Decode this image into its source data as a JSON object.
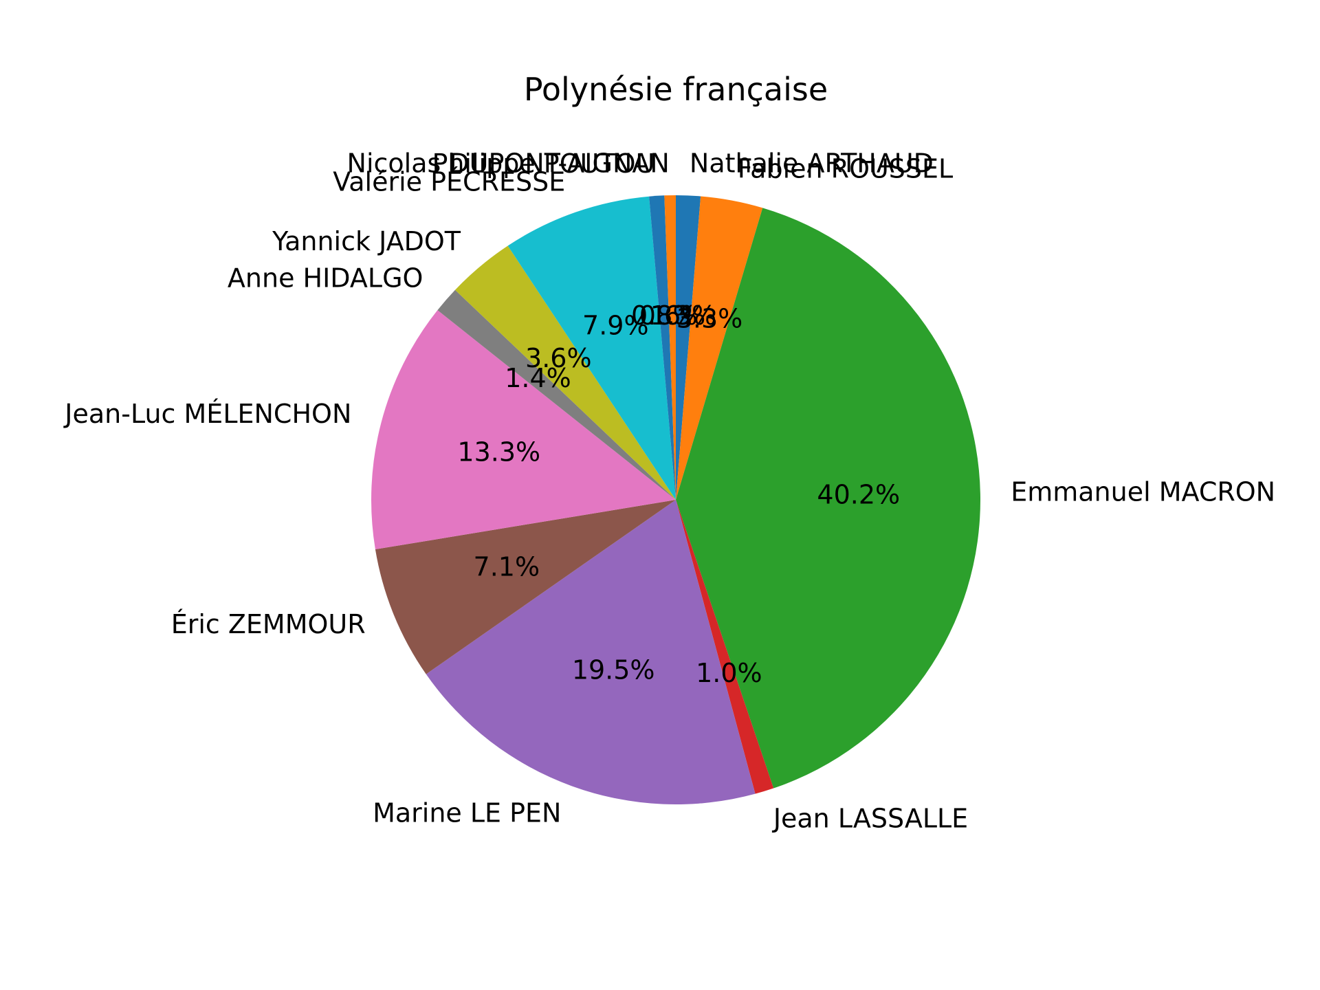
{
  "chart_data": {
    "type": "pie",
    "title": "Polynésie française",
    "start_angle_deg": 90,
    "direction": "clockwise",
    "slices": [
      {
        "label": "Nathalie ARTHAUD",
        "value": 1.3,
        "pct_label": "1.3%",
        "color": "#1f77b4"
      },
      {
        "label": "Fabien ROUSSEL",
        "value": 3.3,
        "pct_label": "3.3%",
        "color": "#ff7f0e"
      },
      {
        "label": "Emmanuel MACRON",
        "value": 40.2,
        "pct_label": "40.2%",
        "color": "#2ca02c"
      },
      {
        "label": "Jean LASSALLE",
        "value": 1.0,
        "pct_label": "1.0%",
        "color": "#d62728"
      },
      {
        "label": "Marine LE PEN",
        "value": 19.5,
        "pct_label": "19.5%",
        "color": "#9467bd"
      },
      {
        "label": "Éric ZEMMOUR",
        "value": 7.1,
        "pct_label": "7.1%",
        "color": "#8c564b"
      },
      {
        "label": "Jean-Luc MÉLENCHON",
        "value": 13.3,
        "pct_label": "13.3%",
        "color": "#e377c2"
      },
      {
        "label": "Anne HIDALGO",
        "value": 1.4,
        "pct_label": "1.4%",
        "color": "#7f7f7f"
      },
      {
        "label": "Yannick JADOT",
        "value": 3.6,
        "pct_label": "3.6%",
        "color": "#bcbd22"
      },
      {
        "label": "Valérie PÉCRESSE",
        "value": 7.9,
        "pct_label": "7.9%",
        "color": "#17becf"
      },
      {
        "label": "Philippe POUTOU",
        "value": 0.8,
        "pct_label": "0.8%",
        "color": "#1f77b4"
      },
      {
        "label": "Nicolas DUPONT-AIGNAN",
        "value": 0.6,
        "pct_label": "0.6%",
        "color": "#ff7f0e"
      }
    ]
  }
}
